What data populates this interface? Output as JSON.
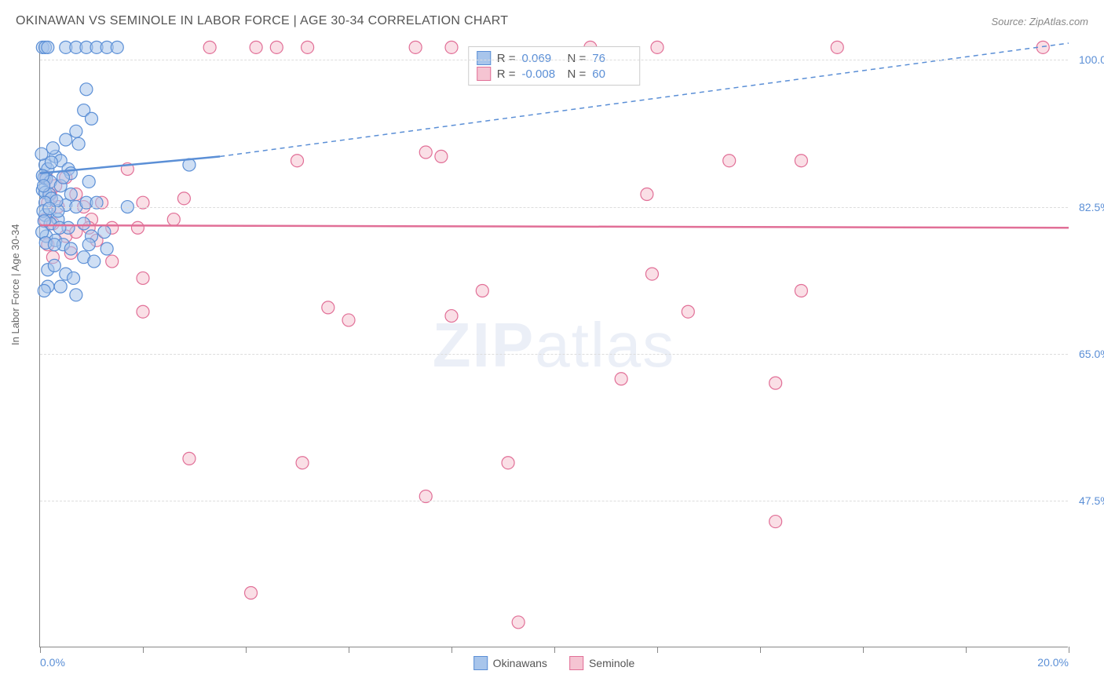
{
  "title": "OKINAWAN VS SEMINOLE IN LABOR FORCE | AGE 30-34 CORRELATION CHART",
  "source": "Source: ZipAtlas.com",
  "y_axis_label": "In Labor Force | Age 30-34",
  "watermark_a": "ZIP",
  "watermark_b": "atlas",
  "chart": {
    "type": "scatter",
    "xlim": [
      0.0,
      20.0
    ],
    "ylim": [
      30.0,
      102.0
    ],
    "x_ticks": [
      0.0,
      2.0,
      4.0,
      6.0,
      8.0,
      10.0,
      12.0,
      14.0,
      16.0,
      18.0,
      20.0
    ],
    "x_tick_labels": {
      "0": "0.0%",
      "20": "20.0%"
    },
    "y_gridlines": [
      47.5,
      65.0,
      82.5,
      100.0
    ],
    "y_tick_labels": [
      "47.5%",
      "65.0%",
      "82.5%",
      "100.0%"
    ],
    "grid_color": "#dddddd",
    "axis_color": "#888888",
    "background_color": "#ffffff",
    "marker_radius": 8,
    "marker_opacity": 0.55,
    "series": [
      {
        "name": "Okinawans",
        "color_fill": "#a8c5eb",
        "color_stroke": "#5b8fd6",
        "r_value": "0.069",
        "n_value": "76",
        "trend": {
          "x1": 0.0,
          "y1": 86.5,
          "x2": 3.5,
          "y2": 88.5,
          "solid_until_x": 3.5,
          "dashed_to_x": 20.0,
          "dashed_to_y": 102.0,
          "width": 2.5
        },
        "points": [
          [
            0.05,
            101.5
          ],
          [
            0.1,
            101.5
          ],
          [
            0.15,
            101.5
          ],
          [
            0.5,
            101.5
          ],
          [
            0.7,
            101.5
          ],
          [
            0.9,
            101.5
          ],
          [
            1.1,
            101.5
          ],
          [
            1.3,
            101.5
          ],
          [
            1.5,
            101.5
          ],
          [
            0.9,
            96.5
          ],
          [
            0.85,
            94.0
          ],
          [
            1.0,
            93.0
          ],
          [
            0.7,
            91.5
          ],
          [
            0.75,
            90.0
          ],
          [
            0.3,
            88.5
          ],
          [
            0.4,
            88.0
          ],
          [
            0.1,
            87.5
          ],
          [
            0.15,
            87.0
          ],
          [
            0.55,
            87.0
          ],
          [
            0.08,
            86.0
          ],
          [
            0.12,
            85.8
          ],
          [
            0.2,
            85.5
          ],
          [
            0.4,
            85.0
          ],
          [
            0.6,
            86.5
          ],
          [
            0.05,
            84.5
          ],
          [
            0.1,
            84.2
          ],
          [
            0.18,
            84.0
          ],
          [
            0.22,
            83.5
          ],
          [
            0.5,
            82.7
          ],
          [
            0.7,
            82.5
          ],
          [
            0.9,
            83.0
          ],
          [
            1.1,
            83.0
          ],
          [
            1.7,
            82.5
          ],
          [
            2.9,
            87.5
          ],
          [
            0.1,
            81.5
          ],
          [
            0.35,
            81.0
          ],
          [
            0.2,
            80.5
          ],
          [
            0.55,
            80.0
          ],
          [
            0.85,
            80.5
          ],
          [
            0.12,
            79.0
          ],
          [
            0.3,
            78.5
          ],
          [
            1.0,
            79.0
          ],
          [
            1.25,
            79.5
          ],
          [
            0.45,
            78.0
          ],
          [
            0.6,
            77.5
          ],
          [
            0.85,
            76.5
          ],
          [
            1.3,
            77.5
          ],
          [
            1.05,
            76.0
          ],
          [
            0.15,
            75.0
          ],
          [
            0.28,
            75.5
          ],
          [
            0.5,
            74.5
          ],
          [
            0.65,
            74.0
          ],
          [
            0.4,
            73.0
          ],
          [
            0.15,
            73.0
          ],
          [
            0.08,
            72.5
          ],
          [
            0.7,
            72.0
          ],
          [
            0.1,
            83.0
          ],
          [
            0.06,
            82.0
          ],
          [
            0.08,
            80.8
          ],
          [
            0.04,
            79.5
          ],
          [
            0.11,
            78.2
          ],
          [
            0.05,
            86.2
          ],
          [
            0.07,
            85.0
          ],
          [
            0.03,
            88.8
          ],
          [
            0.25,
            89.5
          ],
          [
            0.5,
            90.5
          ],
          [
            0.35,
            82.0
          ],
          [
            0.22,
            87.8
          ],
          [
            0.6,
            84.0
          ],
          [
            0.95,
            85.5
          ],
          [
            0.45,
            86.0
          ],
          [
            0.32,
            83.2
          ],
          [
            0.18,
            82.3
          ],
          [
            0.38,
            80.0
          ],
          [
            0.28,
            78.0
          ],
          [
            0.95,
            78.0
          ]
        ]
      },
      {
        "name": "Seminole",
        "color_fill": "#f5c4d2",
        "color_stroke": "#e16f97",
        "r_value": "-0.008",
        "n_value": "60",
        "trend": {
          "x1": 0.0,
          "y1": 80.3,
          "x2": 20.0,
          "y2": 80.0,
          "solid_until_x": 20.0,
          "width": 2.5
        },
        "points": [
          [
            3.3,
            101.5
          ],
          [
            4.2,
            101.5
          ],
          [
            4.6,
            101.5
          ],
          [
            5.2,
            101.5
          ],
          [
            7.3,
            101.5
          ],
          [
            8.0,
            101.5
          ],
          [
            10.7,
            101.5
          ],
          [
            12.0,
            101.5
          ],
          [
            15.5,
            101.5
          ],
          [
            19.5,
            101.5
          ],
          [
            0.12,
            86.0
          ],
          [
            0.2,
            84.0
          ],
          [
            0.3,
            85.0
          ],
          [
            0.5,
            86.0
          ],
          [
            0.35,
            82.5
          ],
          [
            0.15,
            83.0
          ],
          [
            0.1,
            81.0
          ],
          [
            0.25,
            80.5
          ],
          [
            0.7,
            84.0
          ],
          [
            0.85,
            82.5
          ],
          [
            1.0,
            81.0
          ],
          [
            1.2,
            83.0
          ],
          [
            1.4,
            80.0
          ],
          [
            0.5,
            79.0
          ],
          [
            0.7,
            79.5
          ],
          [
            1.1,
            78.5
          ],
          [
            0.15,
            78.0
          ],
          [
            0.6,
            77.0
          ],
          [
            0.25,
            76.5
          ],
          [
            1.7,
            87.0
          ],
          [
            2.0,
            83.0
          ],
          [
            2.8,
            83.5
          ],
          [
            2.6,
            81.0
          ],
          [
            5.0,
            88.0
          ],
          [
            7.5,
            89.0
          ],
          [
            7.8,
            88.5
          ],
          [
            11.8,
            84.0
          ],
          [
            13.4,
            88.0
          ],
          [
            1.4,
            76.0
          ],
          [
            2.0,
            74.0
          ],
          [
            2.0,
            70.0
          ],
          [
            5.6,
            70.5
          ],
          [
            7.5,
            48.0
          ],
          [
            8.0,
            69.5
          ],
          [
            8.6,
            72.5
          ],
          [
            9.1,
            52.0
          ],
          [
            11.9,
            74.5
          ],
          [
            11.3,
            62.0
          ],
          [
            14.3,
            61.5
          ],
          [
            4.1,
            36.5
          ],
          [
            9.3,
            33.0
          ],
          [
            12.6,
            70.0
          ],
          [
            14.8,
            72.5
          ],
          [
            14.3,
            45.0
          ],
          [
            14.8,
            88.0
          ],
          [
            2.9,
            52.5
          ],
          [
            5.1,
            52.0
          ],
          [
            1.9,
            80.0
          ],
          [
            0.95,
            80.0
          ],
          [
            6.0,
            69.0
          ]
        ]
      }
    ]
  },
  "legend_top": {
    "r_label": "R  =",
    "n_label": "N  ="
  },
  "legend_bottom": {
    "items": [
      "Okinawans",
      "Seminole"
    ]
  }
}
